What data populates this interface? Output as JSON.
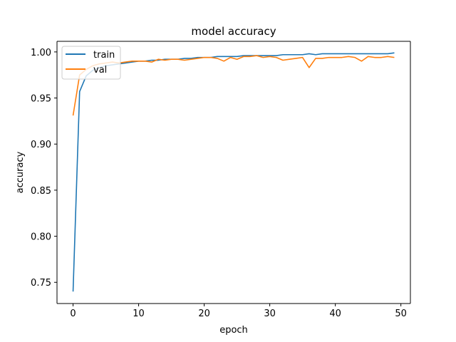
{
  "chart_data": {
    "type": "line",
    "title": "model accuracy",
    "xlabel": "epoch",
    "ylabel": "accuracy",
    "xlim": [
      -2.45,
      51.45
    ],
    "ylim": [
      0.727,
      1.0115
    ],
    "xticks": [
      0,
      10,
      20,
      30,
      40,
      50
    ],
    "yticks": [
      0.75,
      0.8,
      0.85,
      0.9,
      0.95,
      1.0
    ],
    "ytick_labels": [
      "0.75",
      "0.80",
      "0.85",
      "0.90",
      "0.95",
      "1.00"
    ],
    "grid": false,
    "legend": "top-left",
    "x": [
      0,
      1,
      2,
      3,
      4,
      5,
      6,
      7,
      8,
      9,
      10,
      11,
      12,
      13,
      14,
      15,
      16,
      17,
      18,
      19,
      20,
      21,
      22,
      23,
      24,
      25,
      26,
      27,
      28,
      29,
      30,
      31,
      32,
      33,
      34,
      35,
      36,
      37,
      38,
      39,
      40,
      41,
      42,
      43,
      44,
      45,
      46,
      47,
      48,
      49
    ],
    "series": [
      {
        "name": "train",
        "color": "#1f77b4",
        "values": [
          0.74,
          0.957,
          0.974,
          0.98,
          0.983,
          0.985,
          0.986,
          0.987,
          0.988,
          0.989,
          0.99,
          0.99,
          0.991,
          0.991,
          0.992,
          0.992,
          0.992,
          0.993,
          0.993,
          0.994,
          0.994,
          0.994,
          0.995,
          0.995,
          0.995,
          0.995,
          0.996,
          0.996,
          0.996,
          0.996,
          0.996,
          0.996,
          0.997,
          0.997,
          0.997,
          0.997,
          0.998,
          0.997,
          0.998,
          0.998,
          0.998,
          0.998,
          0.998,
          0.998,
          0.998,
          0.998,
          0.998,
          0.998,
          0.998,
          0.999
        ]
      },
      {
        "name": "val",
        "color": "#ff7f0e",
        "values": [
          0.931,
          0.975,
          0.981,
          0.985,
          0.987,
          0.988,
          0.989,
          0.988,
          0.989,
          0.99,
          0.99,
          0.99,
          0.989,
          0.992,
          0.991,
          0.992,
          0.992,
          0.991,
          0.992,
          0.993,
          0.994,
          0.994,
          0.993,
          0.99,
          0.994,
          0.992,
          0.995,
          0.995,
          0.996,
          0.994,
          0.995,
          0.994,
          0.991,
          0.992,
          0.993,
          0.994,
          0.983,
          0.993,
          0.993,
          0.994,
          0.994,
          0.994,
          0.995,
          0.994,
          0.99,
          0.995,
          0.994,
          0.994,
          0.995,
          0.994
        ]
      }
    ]
  }
}
